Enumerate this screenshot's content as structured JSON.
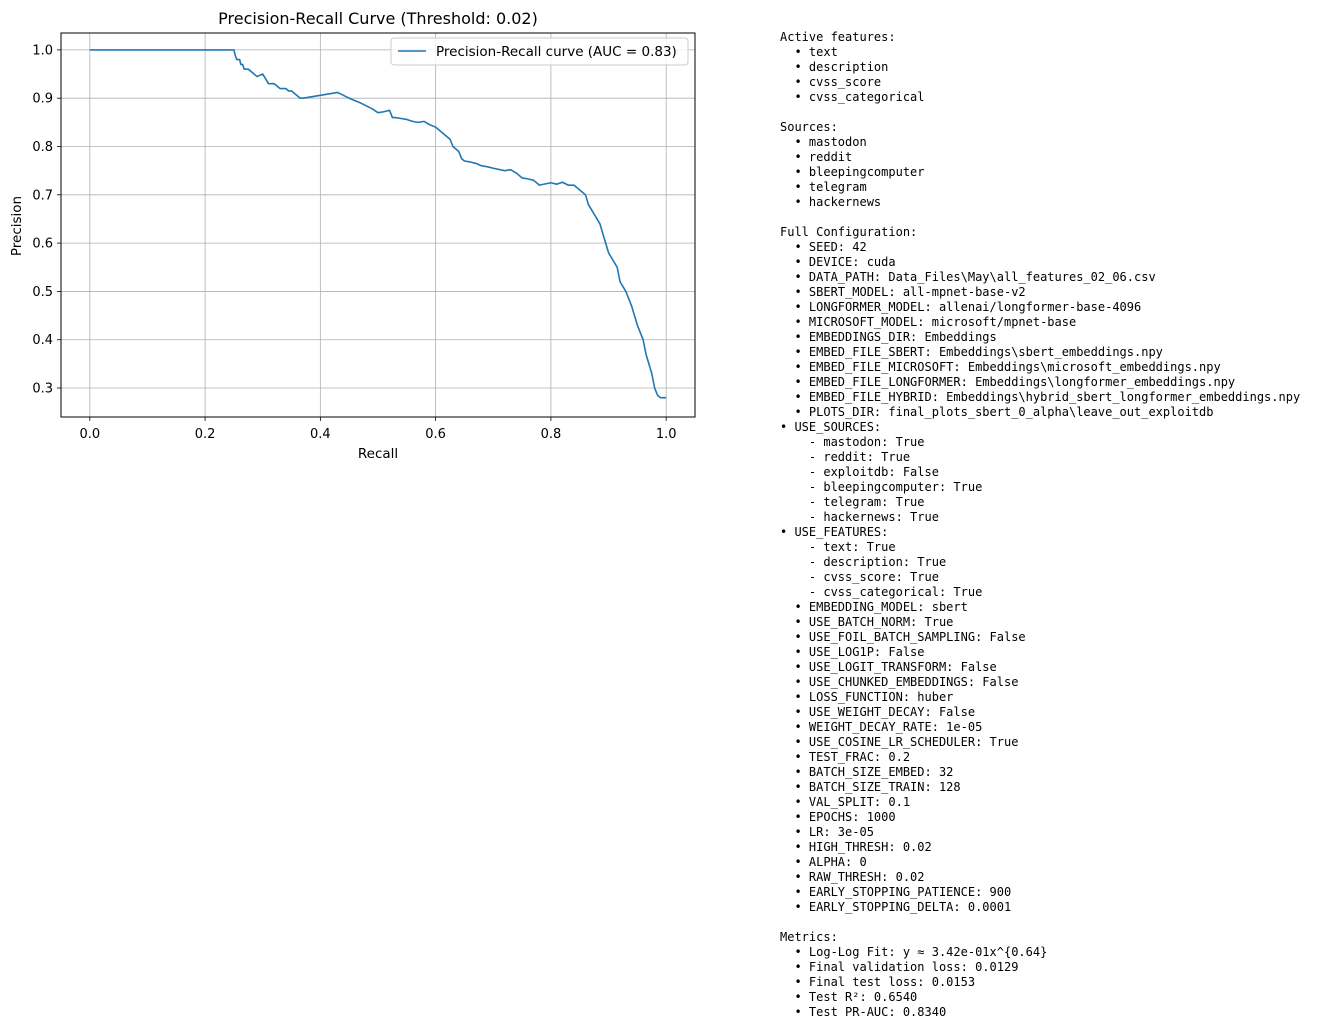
{
  "chart_data": {
    "type": "line",
    "title": "Precision-Recall Curve (Threshold: 0.02)",
    "xlabel": "Recall",
    "ylabel": "Precision",
    "xlim": [
      -0.05,
      1.05
    ],
    "ylim": [
      0.24,
      1.035
    ],
    "xticks": [
      0.0,
      0.2,
      0.4,
      0.6,
      0.8,
      1.0
    ],
    "xtick_labels": [
      "0.0",
      "0.2",
      "0.4",
      "0.6",
      "0.8",
      "1.0"
    ],
    "yticks": [
      0.3,
      0.4,
      0.5,
      0.6,
      0.7,
      0.8,
      0.9,
      1.0
    ],
    "ytick_labels": [
      "0.3",
      "0.4",
      "0.5",
      "0.6",
      "0.7",
      "0.8",
      "0.9",
      "1.0"
    ],
    "grid": true,
    "legend_position": "top-right",
    "series": [
      {
        "name": "Precision-Recall curve (AUC = 0.83)",
        "color": "#1f77b4",
        "x": [
          0.0,
          0.25,
          0.252,
          0.255,
          0.26,
          0.262,
          0.265,
          0.268,
          0.27,
          0.275,
          0.28,
          0.29,
          0.3,
          0.31,
          0.315,
          0.32,
          0.33,
          0.34,
          0.345,
          0.35,
          0.355,
          0.36,
          0.365,
          0.37,
          0.43,
          0.45,
          0.47,
          0.49,
          0.5,
          0.51,
          0.52,
          0.525,
          0.53,
          0.54,
          0.55,
          0.56,
          0.57,
          0.58,
          0.59,
          0.6,
          0.61,
          0.62,
          0.625,
          0.63,
          0.64,
          0.645,
          0.65,
          0.66,
          0.67,
          0.68,
          0.69,
          0.7,
          0.72,
          0.73,
          0.74,
          0.75,
          0.76,
          0.77,
          0.78,
          0.8,
          0.81,
          0.82,
          0.83,
          0.84,
          0.85,
          0.86,
          0.865,
          0.87,
          0.875,
          0.88,
          0.885,
          0.89,
          0.895,
          0.9,
          0.905,
          0.91,
          0.915,
          0.92,
          0.93,
          0.94,
          0.95,
          0.96,
          0.965,
          0.97,
          0.975,
          0.98,
          0.985,
          0.99,
          1.0
        ],
        "y": [
          1.0,
          1.0,
          0.99,
          0.98,
          0.98,
          0.97,
          0.97,
          0.96,
          0.96,
          0.96,
          0.955,
          0.945,
          0.95,
          0.93,
          0.93,
          0.93,
          0.92,
          0.92,
          0.915,
          0.915,
          0.91,
          0.905,
          0.9,
          0.9,
          0.912,
          0.9,
          0.89,
          0.878,
          0.87,
          0.872,
          0.875,
          0.86,
          0.86,
          0.858,
          0.856,
          0.852,
          0.85,
          0.852,
          0.845,
          0.84,
          0.83,
          0.82,
          0.815,
          0.8,
          0.79,
          0.775,
          0.77,
          0.768,
          0.765,
          0.76,
          0.758,
          0.755,
          0.75,
          0.752,
          0.745,
          0.735,
          0.733,
          0.73,
          0.72,
          0.725,
          0.722,
          0.726,
          0.72,
          0.72,
          0.71,
          0.7,
          0.68,
          0.67,
          0.66,
          0.65,
          0.64,
          0.62,
          0.6,
          0.58,
          0.57,
          0.56,
          0.55,
          0.52,
          0.5,
          0.47,
          0.43,
          0.4,
          0.37,
          0.35,
          0.33,
          0.3,
          0.285,
          0.28,
          0.28
        ]
      }
    ]
  },
  "config_lines": [
    "Active features:",
    "  • text",
    "  • description",
    "  • cvss_score",
    "  • cvss_categorical",
    "",
    "Sources:",
    "  • mastodon",
    "  • reddit",
    "  • bleepingcomputer",
    "  • telegram",
    "  • hackernews",
    "",
    "Full Configuration:",
    "  • SEED: 42",
    "  • DEVICE: cuda",
    "  • DATA_PATH: Data_Files\\May\\all_features_02_06.csv",
    "  • SBERT_MODEL: all-mpnet-base-v2",
    "  • LONGFORMER_MODEL: allenai/longformer-base-4096",
    "  • MICROSOFT_MODEL: microsoft/mpnet-base",
    "  • EMBEDDINGS_DIR: Embeddings",
    "  • EMBED_FILE_SBERT: Embeddings\\sbert_embeddings.npy",
    "  • EMBED_FILE_MICROSOFT: Embeddings\\microsoft_embeddings.npy",
    "  • EMBED_FILE_LONGFORMER: Embeddings\\longformer_embeddings.npy",
    "  • EMBED_FILE_HYBRID: Embeddings\\hybrid_sbert_longformer_embeddings.npy",
    "  • PLOTS_DIR: final_plots_sbert_0_alpha\\leave_out_exploitdb",
    "• USE_SOURCES:",
    "    - mastodon: True",
    "    - reddit: True",
    "    - exploitdb: False",
    "    - bleepingcomputer: True",
    "    - telegram: True",
    "    - hackernews: True",
    "• USE_FEATURES:",
    "    - text: True",
    "    - description: True",
    "    - cvss_score: True",
    "    - cvss_categorical: True",
    "  • EMBEDDING_MODEL: sbert",
    "  • USE_BATCH_NORM: True",
    "  • USE_FOIL_BATCH_SAMPLING: False",
    "  • USE_LOG1P: False",
    "  • USE_LOGIT_TRANSFORM: False",
    "  • USE_CHUNKED_EMBEDDINGS: False",
    "  • LOSS_FUNCTION: huber",
    "  • USE_WEIGHT_DECAY: False",
    "  • WEIGHT_DECAY_RATE: 1e-05",
    "  • USE_COSINE_LR_SCHEDULER: True",
    "  • TEST_FRAC: 0.2",
    "  • BATCH_SIZE_EMBED: 32",
    "  • BATCH_SIZE_TRAIN: 128",
    "  • VAL_SPLIT: 0.1",
    "  • EPOCHS: 1000",
    "  • LR: 3e-05",
    "  • HIGH_THRESH: 0.02",
    "  • ALPHA: 0",
    "  • RAW_THRESH: 0.02",
    "  • EARLY_STOPPING_PATIENCE: 900",
    "  • EARLY_STOPPING_DELTA: 0.0001",
    "",
    "Metrics:",
    "  • Log-Log Fit: y ≈ 3.42e-01x^{0.64}",
    "  • Final validation loss: 0.0129",
    "  • Final test loss: 0.0153",
    "  • Test R²: 0.6540",
    "  • Test PR-AUC: 0.8340"
  ]
}
